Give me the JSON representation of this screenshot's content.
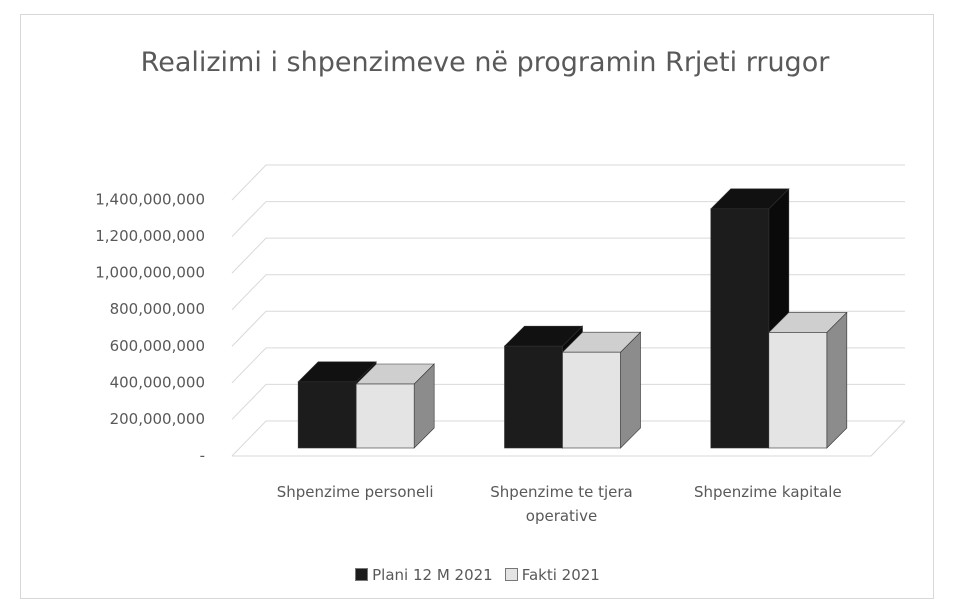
{
  "chart_data": {
    "type": "bar3d",
    "title": "Realizimi i shpenzimeve në programin Rrjeti rrugor",
    "categories": [
      "Shpenzime personeli",
      "Shpenzime te tjera operative",
      "Shpenzime kapitale"
    ],
    "series": [
      {
        "name": "Plani 12 M 2021",
        "color": "#1c1c1c",
        "values": [
          362000000,
          557000000,
          1308000000
        ]
      },
      {
        "name": "Fakti 2021",
        "color": "#e4e4e4",
        "values": [
          350000000,
          524000000,
          632000000
        ]
      }
    ],
    "ylim": [
      0,
      1400000000
    ],
    "yticks": [
      {
        "value": 0,
        "label": "-"
      },
      {
        "value": 200000000,
        "label": "200,000,000"
      },
      {
        "value": 400000000,
        "label": "400,000,000"
      },
      {
        "value": 600000000,
        "label": "600,000,000"
      },
      {
        "value": 800000000,
        "label": "800,000,000"
      },
      {
        "value": 1000000000,
        "label": "1,000,000,000"
      },
      {
        "value": 1200000000,
        "label": "1,200,000,000"
      },
      {
        "value": 1400000000,
        "label": "1,400,000,000"
      }
    ],
    "grid": true,
    "legend": "bottom"
  }
}
